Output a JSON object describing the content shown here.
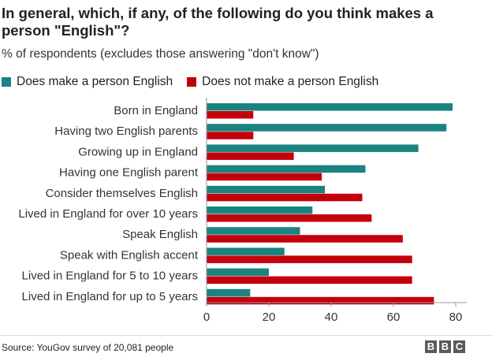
{
  "header": {
    "title": "In general, which, if any, of the following do you think makes a person \"English\"?",
    "subtitle": "% of respondents (excludes those answering \"don't know\")"
  },
  "colors": {
    "teal": "#1b8380",
    "red": "#c4000c",
    "axis": "#999999",
    "grid": "#dddddd",
    "logo": "#5a5a5a"
  },
  "chart_data": {
    "type": "bar",
    "orientation": "horizontal",
    "title": "In general, which, if any, of the following do you think makes a person \"English\"?",
    "subtitle": "% of respondents (excludes those answering \"don't know\")",
    "categories": [
      "Born in England",
      "Having two English parents",
      "Growing up in England",
      "Having one English parent",
      "Consider themselves English",
      "Lived in England for over 10 years",
      "Speak English",
      "Speak with English accent",
      "Lived in England for 5 to 10 years",
      "Lived in England for up to 5 years"
    ],
    "series": [
      {
        "name": "Does make a person English",
        "color": "#1b8380",
        "values": [
          79,
          77,
          68,
          51,
          38,
          34,
          30,
          25,
          20,
          14
        ]
      },
      {
        "name": "Does not make a person English",
        "color": "#c4000c",
        "values": [
          15,
          15,
          28,
          37,
          50,
          53,
          63,
          66,
          66,
          73
        ]
      }
    ],
    "xlim": [
      0,
      80
    ],
    "xticks": [
      "0",
      "20",
      "40",
      "60",
      "80"
    ],
    "grid": false,
    "legend_position": "top-left"
  },
  "footer": {
    "source": "Source: YouGov survey of 20,081 people",
    "logo_letters": [
      "B",
      "B",
      "C"
    ]
  }
}
